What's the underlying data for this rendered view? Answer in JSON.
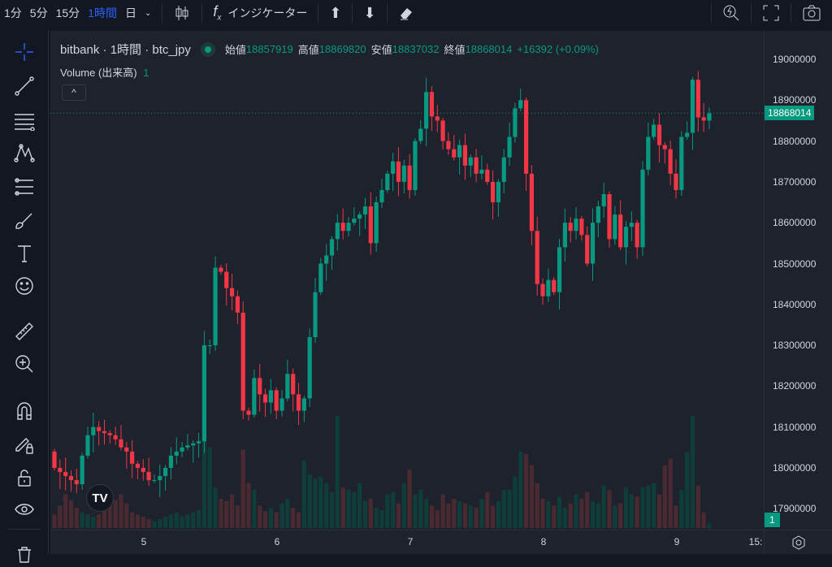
{
  "toolbar": {
    "intervals": [
      "1分",
      "5分",
      "15分",
      "1時間",
      "日"
    ],
    "active_interval": "1時間",
    "indicators_label": "インジケーター"
  },
  "legend": {
    "title": "bitbank · 1時間 · btc_jpy",
    "open_label": "始値",
    "open": "18857919",
    "high_label": "高値",
    "high": "18869820",
    "low_label": "安値",
    "low": "18837032",
    "close_label": "終値",
    "close": "18868014",
    "change": "+16392 (+0.09%)",
    "volume_label": "Volume (出来高)",
    "volume_value": "1"
  },
  "colors": {
    "up": "#089981",
    "down": "#f23645",
    "background": "#1e222d",
    "accent": "#2962ff"
  },
  "price_axis": {
    "labels": [
      "19000000",
      "18900000",
      "18800000",
      "18700000",
      "18600000",
      "18500000",
      "18400000",
      "18300000",
      "18200000",
      "18100000",
      "18000000",
      "17900000"
    ],
    "current_price": "18868014",
    "volume_tag": "1"
  },
  "time_axis": {
    "labels": [
      "5",
      "6",
      "7",
      "8",
      "9",
      "15:"
    ]
  },
  "chart_data": {
    "type": "candlestick",
    "symbol": "btc_jpy",
    "interval": "1h",
    "ylim": [
      17870000,
      19050000
    ],
    "closes": [
      18000000,
      17990000,
      17980000,
      17970000,
      17960000,
      18030000,
      18080000,
      18100000,
      18090000,
      18085000,
      18080000,
      18070000,
      18050000,
      18040000,
      18010000,
      18000000,
      17990000,
      17970000,
      17970000,
      17980000,
      18000000,
      18030000,
      18040000,
      18050000,
      18055000,
      18060000,
      18065000,
      18300000,
      18300000,
      18490000,
      18480000,
      18440000,
      18420000,
      18380000,
      18140000,
      18130000,
      18220000,
      18180000,
      18160000,
      18190000,
      18140000,
      18170000,
      18230000,
      18180000,
      18140000,
      18170000,
      18320000,
      18430000,
      18500000,
      18520000,
      18560000,
      18600000,
      18580000,
      18600000,
      18610000,
      18620000,
      18640000,
      18550000,
      18650000,
      18680000,
      18720000,
      18750000,
      18700000,
      18740000,
      18680000,
      18800000,
      18830000,
      18920000,
      18860000,
      18850000,
      18800000,
      18780000,
      18760000,
      18790000,
      18740000,
      18760000,
      18720000,
      18730000,
      18700000,
      18650000,
      18700000,
      18760000,
      18810000,
      18880000,
      18900000,
      18720000,
      18580000,
      18450000,
      18420000,
      18460000,
      18430000,
      18540000,
      18600000,
      18580000,
      18610000,
      18570000,
      18500000,
      18600000,
      18640000,
      18670000,
      18560000,
      18620000,
      18540000,
      18590000,
      18600000,
      18540000,
      18730000,
      18810000,
      18840000,
      18790000,
      18780000,
      18720000,
      18680000,
      18810000,
      18820000,
      18950000,
      18857919,
      18850000,
      18868014
    ],
    "volumes": [
      12,
      20,
      30,
      25,
      18,
      14,
      12,
      10,
      12,
      16,
      20,
      25,
      30,
      22,
      14,
      12,
      10,
      8,
      6,
      8,
      10,
      12,
      14,
      10,
      12,
      14,
      16,
      100,
      72,
      36,
      26,
      24,
      30,
      20,
      70,
      40,
      34,
      20,
      15,
      18,
      14,
      22,
      26,
      18,
      14,
      60,
      48,
      44,
      46,
      40,
      32,
      100,
      36,
      34,
      32,
      40,
      24,
      26,
      18,
      16,
      30,
      32,
      22,
      40,
      52,
      30,
      34,
      26,
      20,
      16,
      30,
      22,
      26,
      24,
      22,
      20,
      18,
      26,
      32,
      20,
      24,
      34,
      34,
      46,
      68,
      66,
      56,
      40,
      26,
      24,
      20,
      28,
      18,
      22,
      30,
      26,
      32,
      24,
      22,
      38,
      34,
      20,
      22,
      36,
      30,
      28,
      36,
      38,
      40,
      30,
      56,
      62,
      20,
      34,
      68,
      100,
      38,
      14,
      4
    ]
  }
}
